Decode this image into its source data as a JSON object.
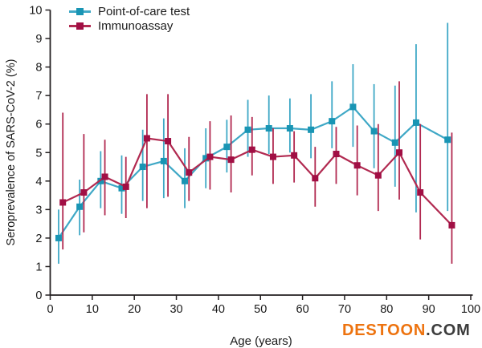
{
  "watermark": {
    "part1": "DESTOON",
    "part2": ".COM",
    "part1_color": "#ed730f",
    "part2_color": "#3d3d3d"
  },
  "chart_data": {
    "type": "line",
    "title": "",
    "xlabel": "Age (years)",
    "ylabel": "Seroprevalence of SARS-CoV-2 (%)",
    "xlim": [
      0,
      100
    ],
    "ylim": [
      0,
      10
    ],
    "x_ticks": [
      0,
      10,
      20,
      30,
      40,
      50,
      60,
      70,
      80,
      90,
      100
    ],
    "y_ticks": [
      0,
      1,
      2,
      3,
      4,
      5,
      6,
      7,
      8,
      9,
      10
    ],
    "grid": false,
    "legend_position": "top-left",
    "error_bars": true,
    "axis_color": "#231f20",
    "series": [
      {
        "name": "Point-of-care test",
        "marker": "square",
        "line_color": "#3fa8c6",
        "marker_color": "#1995b4",
        "x": [
          2,
          7,
          12,
          17,
          22,
          27,
          32,
          37,
          42,
          47,
          52,
          57,
          62,
          67,
          72,
          77,
          82,
          87,
          94.5
        ],
        "y": [
          2.0,
          3.1,
          4.0,
          3.75,
          4.5,
          4.7,
          4.0,
          4.8,
          5.2,
          5.8,
          5.85,
          5.85,
          5.8,
          6.1,
          6.6,
          5.75,
          5.35,
          6.05,
          5.45
        ],
        "ci_low": [
          1.1,
          2.1,
          3.05,
          2.85,
          3.3,
          3.4,
          3.05,
          3.75,
          4.3,
          4.85,
          4.95,
          5.0,
          4.8,
          5.15,
          5.2,
          4.45,
          3.8,
          2.9,
          2.95
        ],
        "ci_high": [
          3.0,
          4.05,
          5.05,
          4.9,
          5.8,
          6.2,
          5.15,
          5.85,
          6.15,
          6.85,
          7.0,
          6.9,
          7.05,
          7.5,
          8.1,
          7.4,
          7.35,
          8.8,
          9.55
        ]
      },
      {
        "name": "Immunoassay",
        "marker": "square",
        "line_color": "#b12950",
        "marker_color": "#a10f44",
        "x": [
          3,
          8,
          13,
          18,
          23,
          28,
          33,
          38,
          43,
          48,
          53,
          58,
          63,
          68,
          73,
          78,
          83,
          88,
          95.5
        ],
        "y": [
          3.25,
          3.6,
          4.15,
          3.8,
          5.5,
          5.4,
          4.3,
          4.85,
          4.75,
          5.1,
          4.85,
          4.9,
          4.1,
          4.95,
          4.55,
          4.2,
          5.0,
          3.6,
          2.45
        ],
        "ci_low": [
          1.6,
          2.2,
          2.8,
          2.7,
          3.05,
          3.45,
          3.3,
          3.7,
          3.6,
          4.2,
          3.9,
          3.95,
          3.1,
          3.9,
          3.5,
          2.95,
          3.35,
          1.95,
          1.1
        ],
        "ci_high": [
          6.4,
          5.65,
          5.45,
          4.85,
          7.05,
          7.05,
          5.55,
          6.1,
          6.3,
          6.25,
          5.85,
          5.75,
          5.2,
          5.9,
          5.95,
          6.0,
          7.5,
          6.0,
          5.7
        ]
      }
    ]
  }
}
